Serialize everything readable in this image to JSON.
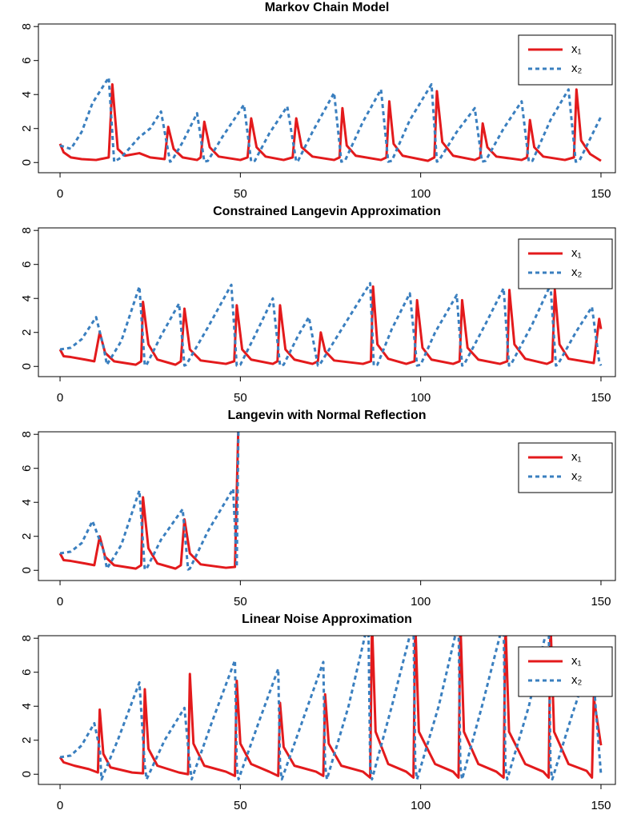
{
  "chart_data": [
    {
      "type": "line",
      "title": "Markov Chain Model",
      "xlim": [
        -6,
        154
      ],
      "ylim": [
        -0.6,
        8.15
      ],
      "xticks": [
        0,
        50,
        100,
        150
      ],
      "yticks": [
        0,
        2,
        4,
        6,
        8
      ],
      "legend": "topright",
      "series": [
        {
          "name": "x₁",
          "color": "#e31a1c",
          "dash": "solid",
          "x": [
            0,
            1,
            3,
            6,
            10,
            13.5,
            14.5,
            16,
            18,
            22,
            25,
            29,
            30,
            31.5,
            34,
            38,
            39,
            40,
            41.5,
            44,
            50,
            52,
            53,
            54.5,
            57,
            62,
            64.5,
            65.5,
            67,
            70,
            76,
            77.5,
            78.3,
            79.5,
            82,
            89,
            90.5,
            91.3,
            92.5,
            95,
            102,
            103.8,
            104.5,
            106,
            109,
            115,
            116.5,
            117.2,
            118.5,
            121,
            128,
            129.5,
            130.3,
            131.5,
            134,
            140,
            142.5,
            143.2,
            144.5,
            147,
            150
          ],
          "values": [
            1.1,
            0.6,
            0.3,
            0.2,
            0.15,
            0.3,
            4.6,
            0.8,
            0.4,
            0.55,
            0.3,
            0.2,
            2.1,
            0.8,
            0.3,
            0.15,
            0.3,
            2.4,
            0.9,
            0.35,
            0.15,
            0.3,
            2.6,
            0.9,
            0.35,
            0.15,
            0.3,
            2.6,
            0.9,
            0.35,
            0.15,
            0.3,
            3.2,
            1.0,
            0.4,
            0.15,
            0.3,
            3.6,
            1.1,
            0.4,
            0.1,
            0.3,
            4.2,
            1.2,
            0.4,
            0.15,
            0.3,
            2.3,
            0.9,
            0.35,
            0.15,
            0.3,
            2.5,
            0.9,
            0.35,
            0.15,
            0.3,
            4.3,
            1.3,
            0.5,
            0.1
          ]
        },
        {
          "name": "x₂",
          "color": "#3a7fbf",
          "dash": "dashed",
          "x": [
            0,
            3,
            6,
            9,
            13.5,
            15,
            17,
            22,
            25,
            28,
            30.5,
            31,
            34,
            38,
            40,
            41,
            45,
            51,
            53,
            54,
            58,
            63,
            65.5,
            66,
            70,
            76,
            78,
            79,
            84,
            89,
            91,
            92,
            97,
            103,
            104.5,
            105,
            110,
            115,
            117,
            118,
            123,
            128,
            130,
            131,
            136,
            141,
            143,
            144,
            150
          ],
          "values": [
            1,
            0.8,
            1.8,
            3.5,
            5,
            0.05,
            0.3,
            1.5,
            2,
            3,
            0.05,
            0.1,
            1.2,
            2.9,
            0.05,
            0.1,
            1.5,
            3.4,
            0.05,
            0.1,
            1.7,
            3.3,
            0.05,
            0.1,
            1.8,
            4.1,
            0.05,
            0.1,
            2.4,
            4.3,
            0.05,
            0.1,
            2.5,
            4.6,
            0.05,
            0.1,
            1.8,
            3.2,
            0.05,
            0.1,
            2,
            3.6,
            0.05,
            0.1,
            2.5,
            4.3,
            0.05,
            0.1,
            2.7
          ]
        }
      ]
    },
    {
      "type": "line",
      "title": "Constrained Langevin Approximation",
      "xlim": [
        -6,
        154
      ],
      "ylim": [
        -0.6,
        8.15
      ],
      "xticks": [
        0,
        50,
        100,
        150
      ],
      "yticks": [
        0,
        2,
        4,
        6,
        8
      ],
      "legend": "topright",
      "series": [
        {
          "name": "x₁",
          "color": "#e31a1c",
          "dash": "solid",
          "x": [
            0,
            1,
            3,
            7,
            9.5,
            11,
            12.5,
            15,
            21,
            22.5,
            23,
            24.5,
            27,
            32,
            33.5,
            34.5,
            36,
            39,
            46,
            48.3,
            49,
            50.5,
            53,
            59,
            60.3,
            61,
            62.5,
            65,
            70,
            71.5,
            72.3,
            73.5,
            76,
            84,
            86.2,
            86.8,
            88,
            91,
            96,
            98.3,
            99,
            100.5,
            103,
            109,
            110.8,
            111.5,
            113,
            116,
            122,
            124,
            124.6,
            126,
            129,
            135,
            136.5,
            137.2,
            138.5,
            141,
            148,
            149.5,
            150
          ],
          "values": [
            1,
            0.6,
            0.55,
            0.4,
            0.3,
            2,
            0.8,
            0.3,
            0.1,
            0.3,
            3.8,
            1.3,
            0.4,
            0.1,
            0.3,
            3.4,
            1.0,
            0.35,
            0.15,
            0.3,
            3.6,
            1.0,
            0.4,
            0.15,
            0.3,
            3.6,
            1.0,
            0.4,
            0.15,
            0.3,
            2.0,
            0.9,
            0.35,
            0.15,
            0.3,
            4.7,
            1.3,
            0.45,
            0.15,
            0.3,
            3.9,
            1.1,
            0.4,
            0.15,
            0.3,
            3.9,
            1.1,
            0.4,
            0.15,
            0.3,
            4.5,
            1.3,
            0.45,
            0.15,
            0.3,
            4.5,
            1.3,
            0.45,
            0.2,
            2.8,
            2.2
          ]
        },
        {
          "name": "x₂",
          "color": "#3a7fbf",
          "dash": "dashed",
          "x": [
            0,
            3,
            6,
            10,
            12,
            13,
            17,
            22,
            23.5,
            24,
            28,
            33,
            34.5,
            35,
            41,
            47.5,
            49,
            50,
            54,
            59,
            61,
            62,
            66,
            69,
            71.5,
            72,
            79,
            86,
            87,
            88,
            92,
            97,
            99,
            100,
            104,
            110,
            111.5,
            112,
            118,
            123,
            124.5,
            125,
            131,
            136,
            137.5,
            138,
            143,
            147.5,
            149.5,
            150
          ],
          "values": [
            1,
            1.1,
            1.6,
            2.9,
            1.2,
            0.1,
            1.5,
            4.7,
            0.05,
            0.1,
            1.8,
            3.7,
            0.05,
            0.1,
            2.3,
            4.8,
            0.05,
            0.1,
            1.8,
            4,
            0.05,
            0.1,
            1.8,
            2.9,
            0.05,
            0.1,
            2.5,
            4.9,
            0.05,
            0.1,
            2.2,
            4.3,
            0.05,
            0.1,
            2,
            4.2,
            0.05,
            0.1,
            2.5,
            4.6,
            0.05,
            0.1,
            2.5,
            4.8,
            0.05,
            0.1,
            2,
            3.5,
            0.3,
            0.05
          ]
        }
      ]
    },
    {
      "type": "line",
      "title": "Langevin with Normal Reflection",
      "xlim": [
        -6,
        154
      ],
      "ylim": [
        -0.6,
        8.15
      ],
      "xticks": [
        0,
        50,
        100,
        150
      ],
      "yticks": [
        0,
        2,
        4,
        6,
        8
      ],
      "legend": "topright",
      "series": [
        {
          "name": "x₁",
          "color": "#e31a1c",
          "dash": "solid",
          "x": [
            0,
            1,
            3,
            7,
            9.5,
            11,
            12.5,
            15,
            21,
            22.5,
            23,
            24.5,
            27,
            32,
            33.5,
            34.5,
            36,
            39,
            46,
            48.5,
            49.5
          ],
          "values": [
            1,
            0.6,
            0.55,
            0.4,
            0.3,
            2,
            0.8,
            0.3,
            0.1,
            0.3,
            4.3,
            1.3,
            0.4,
            0.1,
            0.3,
            3,
            1.0,
            0.35,
            0.15,
            0.2,
            9
          ]
        },
        {
          "name": "x₂",
          "color": "#3a7fbf",
          "dash": "dashed",
          "x": [
            0,
            3,
            6,
            9,
            12,
            13,
            17,
            22,
            23.5,
            24,
            28,
            34,
            35.5,
            36,
            41,
            48,
            49,
            49.5
          ],
          "values": [
            1,
            1.1,
            1.6,
            2.9,
            1.2,
            0.1,
            1.5,
            4.7,
            0.05,
            0.1,
            1.8,
            3.6,
            0.05,
            0.1,
            2.3,
            4.8,
            0.2,
            9
          ]
        }
      ]
    },
    {
      "type": "line",
      "title": "Linear Noise Approximation",
      "xlim": [
        -6,
        154
      ],
      "ylim": [
        -0.6,
        8.15
      ],
      "xticks": [
        0,
        50,
        100,
        150
      ],
      "yticks": [
        0,
        2,
        4,
        6,
        8
      ],
      "legend": "topright",
      "series": [
        {
          "name": "x₁",
          "color": "#e31a1c",
          "dash": "solid",
          "x": [
            0,
            1,
            4,
            8,
            10.5,
            11,
            12,
            14,
            20,
            23,
            23.5,
            24.5,
            27,
            33,
            35.5,
            36,
            37,
            40,
            46,
            48.5,
            49,
            50,
            53,
            58,
            60.5,
            61,
            62,
            65,
            71,
            73,
            73.5,
            74.5,
            78,
            84,
            86,
            86.5,
            87.5,
            91,
            96,
            98,
            98.5,
            99.5,
            104,
            109,
            110.5,
            111,
            112,
            116,
            121,
            123,
            123.5,
            124.5,
            129,
            134,
            135.5,
            136,
            137,
            141,
            146,
            147.5,
            148,
            150
          ],
          "values": [
            1,
            0.7,
            0.5,
            0.3,
            0.1,
            3.8,
            1.2,
            0.4,
            0.1,
            0.05,
            5,
            1.5,
            0.5,
            0.1,
            0,
            5.9,
            1.8,
            0.5,
            0.15,
            -0.1,
            5.5,
            1.8,
            0.6,
            0.15,
            -0.1,
            4.2,
            1.6,
            0.5,
            0.15,
            -0.1,
            4.7,
            1.8,
            0.5,
            0.15,
            -0.2,
            9,
            2.5,
            0.6,
            0.15,
            -0.2,
            9,
            2.5,
            0.6,
            0.15,
            -0.2,
            9,
            2.5,
            0.6,
            0.15,
            -0.2,
            9,
            2.5,
            0.6,
            0.15,
            -0.2,
            9,
            2.5,
            0.6,
            0.2,
            -0.2,
            4.5,
            1.7
          ]
        },
        {
          "name": "x₂",
          "color": "#3a7fbf",
          "dash": "dashed",
          "x": [
            0,
            3,
            6,
            9.5,
            11,
            11.5,
            16,
            22,
            23.5,
            24,
            29,
            34.5,
            36,
            36.5,
            42,
            48.5,
            49,
            49.5,
            55,
            60.5,
            61,
            61.5,
            67,
            73,
            73.5,
            74,
            80,
            85.5,
            86,
            86.5,
            92,
            98,
            98.5,
            99,
            105,
            110.5,
            111,
            111.5,
            117,
            123,
            123.5,
            124,
            130,
            135.5,
            136,
            136.5,
            142,
            147.5,
            148.5,
            150
          ],
          "values": [
            1,
            1.1,
            1.7,
            3,
            1.5,
            -0.3,
            2,
            5.4,
            0.5,
            -0.3,
            2,
            3.9,
            0.5,
            -0.3,
            3,
            6.7,
            0.5,
            -0.3,
            3,
            6.2,
            0.5,
            -0.3,
            3,
            6.6,
            0.5,
            -0.3,
            4,
            9,
            0.5,
            -0.3,
            4,
            9,
            0.5,
            -0.3,
            4,
            9,
            0.5,
            -0.3,
            4,
            9,
            0.5,
            -0.3,
            4,
            9,
            0.5,
            -0.3,
            3.5,
            7,
            4,
            0
          ]
        }
      ]
    }
  ]
}
